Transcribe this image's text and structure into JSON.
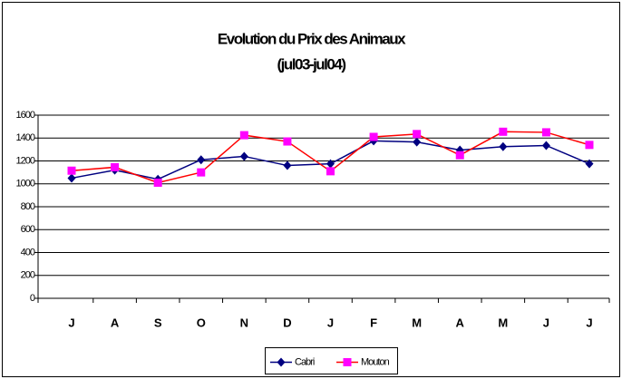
{
  "chart_data": {
    "type": "line",
    "title": "Evolution du Prix des Animaux",
    "subtitle": "(jul03-jul04)",
    "categories": [
      "J",
      "A",
      "S",
      "O",
      "N",
      "D",
      "J",
      "F",
      "M",
      "A",
      "M",
      "J",
      "J"
    ],
    "series": [
      {
        "name": "Cabri",
        "color": "#000080",
        "marker": "diamond",
        "values": [
          1050,
          1120,
          1040,
          1210,
          1240,
          1160,
          1175,
          1375,
          1365,
          1295,
          1325,
          1335,
          1175
        ]
      },
      {
        "name": "Mouton",
        "color": "#ff0000",
        "marker_color": "#ff00ff",
        "marker": "square",
        "values": [
          1115,
          1145,
          1010,
          1100,
          1425,
          1370,
          1110,
          1410,
          1435,
          1250,
          1455,
          1450,
          1340
        ]
      }
    ],
    "ylim": [
      0,
      1600
    ],
    "yticks": [
      0,
      200,
      400,
      600,
      800,
      1000,
      1200,
      1400,
      1600
    ],
    "grid": true,
    "legend": "bottom"
  }
}
